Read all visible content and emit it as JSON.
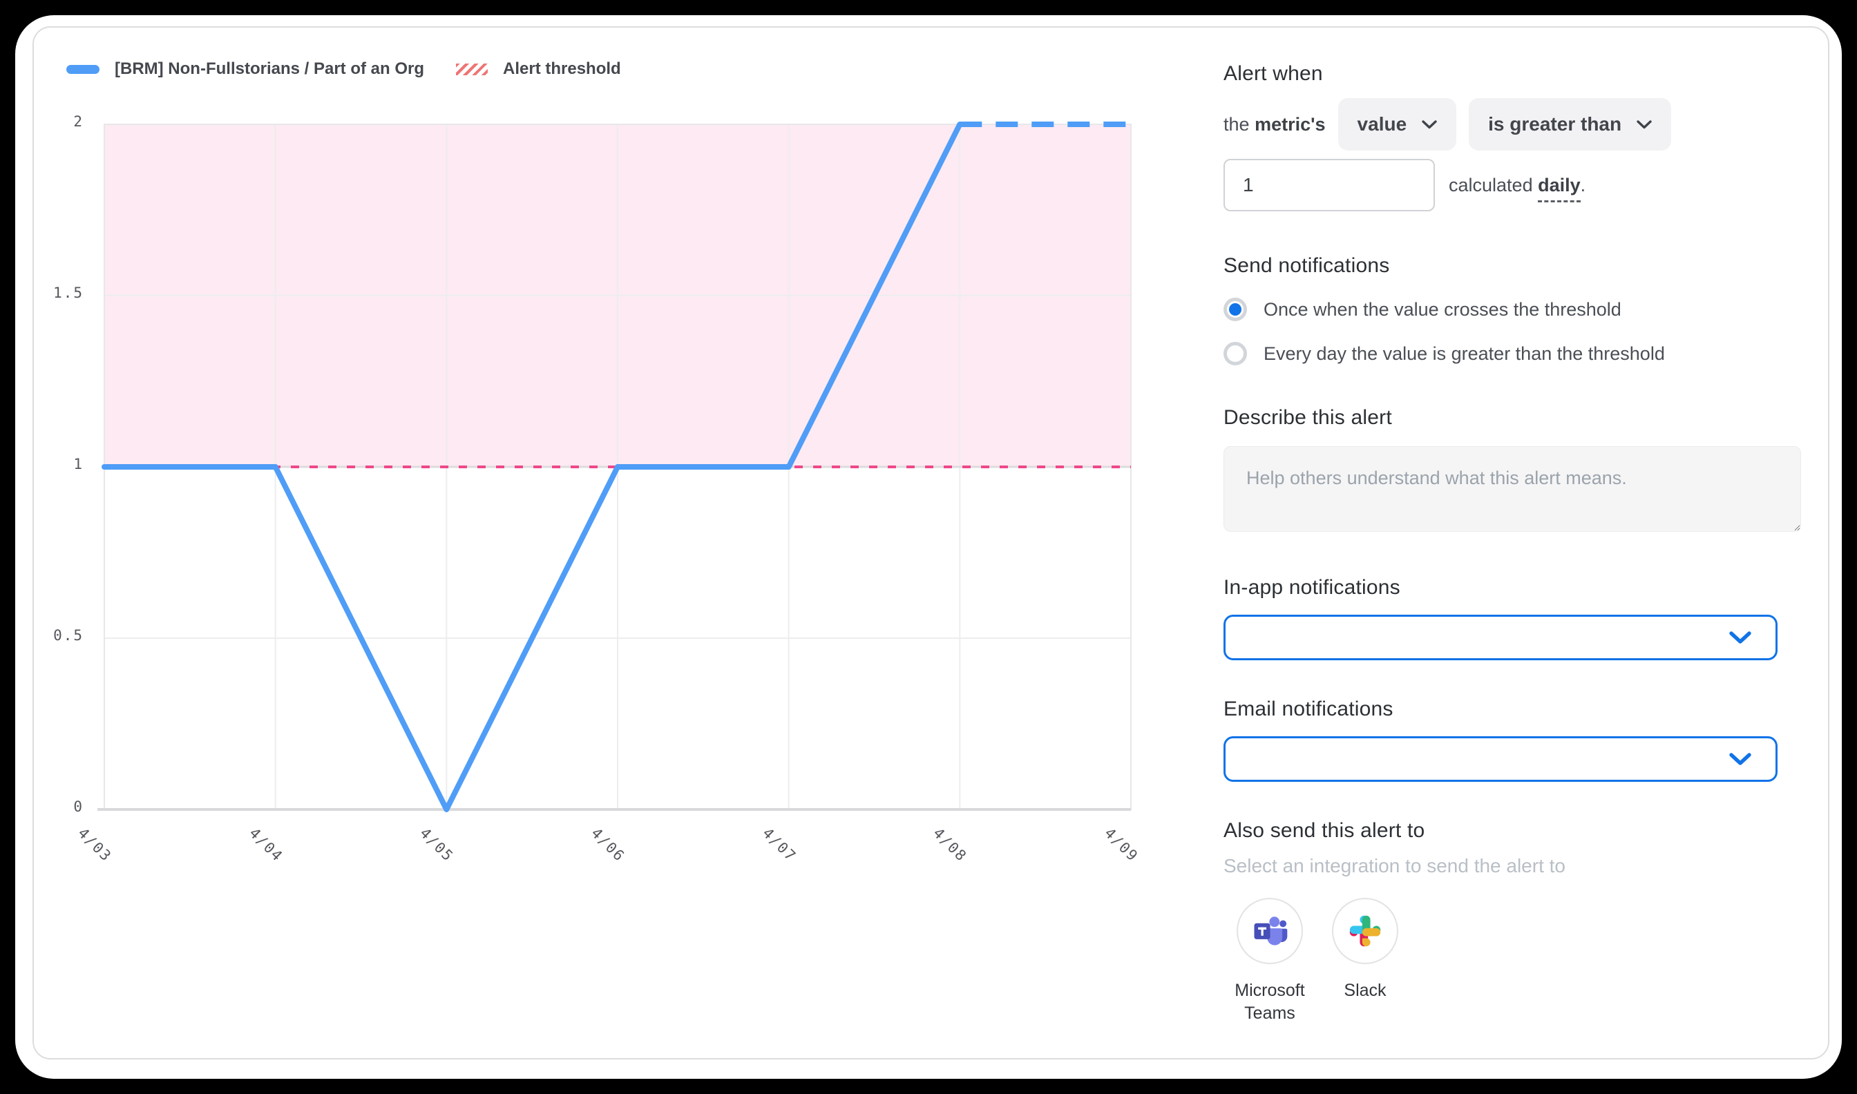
{
  "chart_data": {
    "type": "line",
    "x": [
      "4/03",
      "4/04",
      "4/05",
      "4/06",
      "4/07",
      "4/08",
      "4/09"
    ],
    "series": [
      {
        "name": "[BRM] Non-Fullstorians / Part of an Org",
        "values": [
          1,
          1,
          0,
          1,
          1,
          2,
          2
        ],
        "dashed_from_index": 5,
        "color": "#4f9df7"
      }
    ],
    "threshold": {
      "value": 1,
      "label": "Alert threshold",
      "shade": "above",
      "line_color": "#f0488a",
      "shade_color": "#fdeaf2",
      "legend_hatch_color": "#ee7575"
    },
    "ylim": [
      0,
      2
    ],
    "yticks": [
      2,
      1.5,
      1,
      0.5,
      0
    ],
    "ytick_labels": [
      "2",
      "1.5",
      "1",
      "0.5",
      "0"
    ],
    "grid": true,
    "legend_position": "top-left"
  },
  "panel": {
    "alert_when": {
      "heading": "Alert when",
      "prefix": "the",
      "prefix_bold": "metric's",
      "metric_dropdown": "value",
      "comparator_dropdown": "is greater than",
      "threshold_value": "1",
      "calculated_text": "calculated",
      "calculated_interval": "daily",
      "period": "."
    },
    "send_notifications": {
      "heading": "Send notifications",
      "options": [
        {
          "label": "Once when the value crosses the threshold",
          "selected": true
        },
        {
          "label": "Every day the value is greater than the threshold",
          "selected": false
        }
      ]
    },
    "describe": {
      "heading": "Describe this alert",
      "placeholder": "Help others understand what this alert means.",
      "value": ""
    },
    "in_app": {
      "heading": "In-app notifications",
      "value": ""
    },
    "email": {
      "heading": "Email notifications",
      "value": ""
    },
    "also_send": {
      "heading": "Also send this alert to",
      "subtext": "Select an integration to send the alert to",
      "integrations": [
        {
          "name": "Microsoft Teams"
        },
        {
          "name": "Slack"
        }
      ]
    }
  },
  "colors": {
    "accent_blue": "#1173e8",
    "chart_line_blue": "#4f9df7",
    "threshold_pink": "#f0488a",
    "shade_pink": "#fdeaf2",
    "hatch_red": "#ee7575"
  }
}
